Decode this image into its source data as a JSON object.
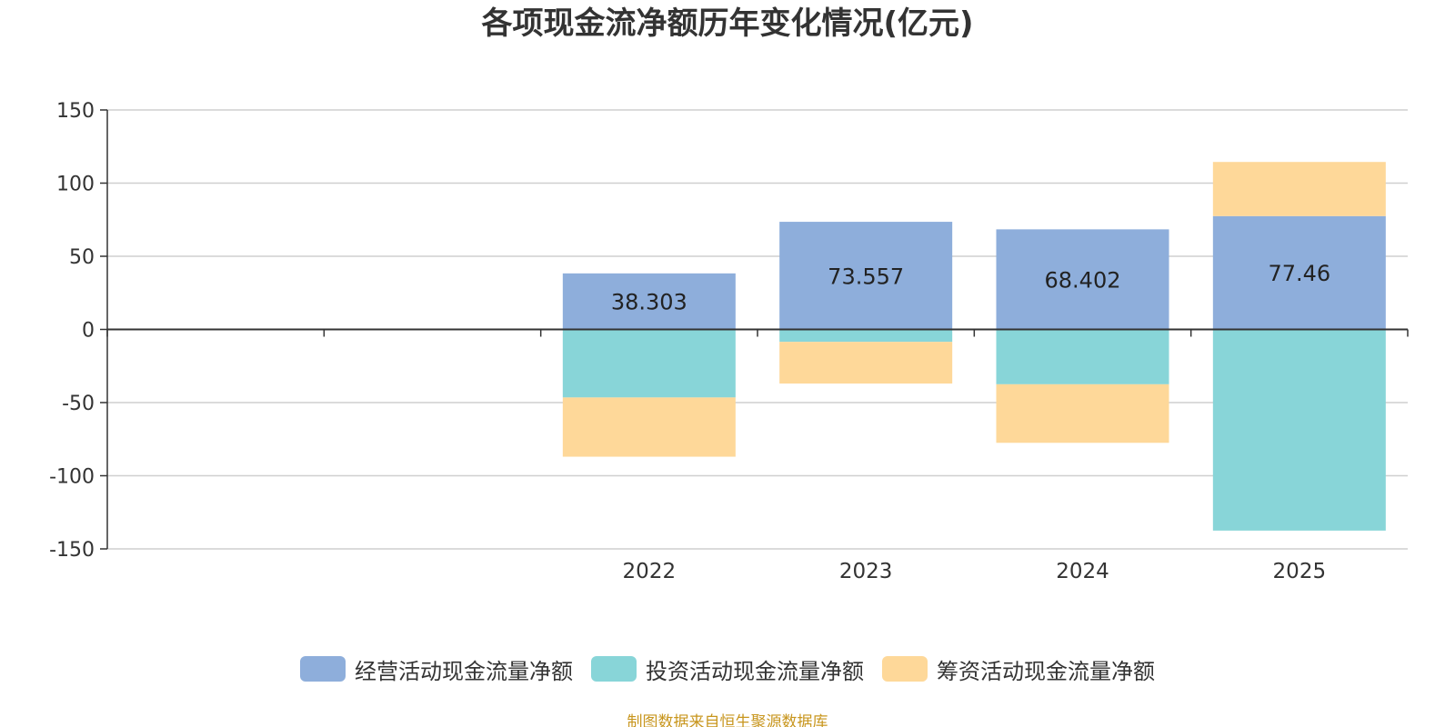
{
  "chart_data": {
    "type": "bar",
    "stacked": true,
    "title": "各项现金流净额历年变化情况(亿元)",
    "categories": [
      "",
      "",
      "2022",
      "2023",
      "2024",
      "2025"
    ],
    "ylim": [
      -150,
      150
    ],
    "yticks": [
      150,
      100,
      50,
      0,
      -50,
      -100,
      -150
    ],
    "ytick_labels": [
      "150",
      "100",
      "50",
      "0",
      "-50",
      "-100",
      "-150"
    ],
    "grid": true,
    "legend_position": "bottom",
    "series": [
      {
        "name": "经营活动现金流量净额",
        "color": "#8eaedb",
        "values": [
          null,
          null,
          38.303,
          73.557,
          68.402,
          77.46
        ],
        "data_labels": [
          "",
          "",
          "38.303",
          "73.557",
          "68.402",
          "77.46"
        ]
      },
      {
        "name": "投资活动现金流量净额",
        "color": "#88d5d8",
        "values": [
          null,
          null,
          -46.5,
          -8.5,
          -37.5,
          -137.5
        ]
      },
      {
        "name": "筹资活动现金流量净额",
        "color": "#fed899",
        "values": [
          null,
          null,
          -40.5,
          -28.5,
          -40.0,
          37.0
        ]
      }
    ]
  },
  "source_text": "制图数据来自恒生聚源数据库"
}
